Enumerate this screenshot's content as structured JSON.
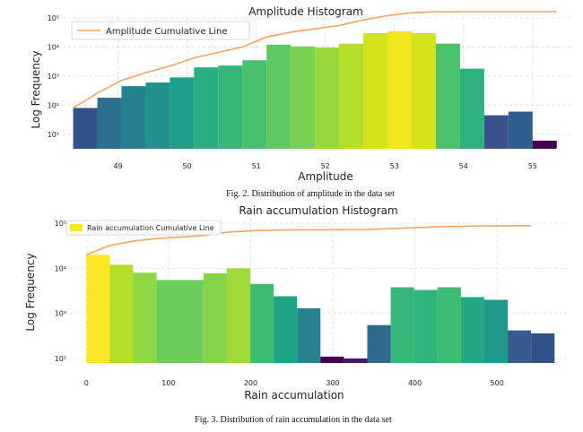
{
  "chart_data": [
    {
      "type": "bar",
      "title": "Amplitude Histogram",
      "xlabel": "Amplitude",
      "ylabel": "Log Frequency",
      "x_ticks": [
        49,
        50,
        51,
        52,
        53,
        54,
        55
      ],
      "y_ticks": [
        "10¹",
        "10²",
        "10³",
        "10⁴",
        "10⁵"
      ],
      "y_scale": "log",
      "grid": true,
      "legend": {
        "placement": "top-left",
        "label": "Amplitude Cumulative Line",
        "color": "#f4a460"
      },
      "bins": [
        {
          "x0": 48.35,
          "x1": 48.7,
          "count": 80,
          "color": "#31538a"
        },
        {
          "x0": 48.7,
          "x1": 49.05,
          "count": 180,
          "color": "#2c6f8e"
        },
        {
          "x0": 49.05,
          "x1": 49.4,
          "count": 450,
          "color": "#26818e"
        },
        {
          "x0": 49.4,
          "x1": 49.75,
          "count": 600,
          "color": "#22918b"
        },
        {
          "x0": 49.75,
          "x1": 50.1,
          "count": 900,
          "color": "#1fa088"
        },
        {
          "x0": 50.1,
          "x1": 50.45,
          "count": 2000,
          "color": "#28ae80"
        },
        {
          "x0": 50.45,
          "x1": 50.8,
          "count": 2300,
          "color": "#35b779"
        },
        {
          "x0": 50.8,
          "x1": 51.15,
          "count": 3500,
          "color": "#48c16e"
        },
        {
          "x0": 51.15,
          "x1": 51.5,
          "count": 12000,
          "color": "#5ec962"
        },
        {
          "x0": 51.5,
          "x1": 51.85,
          "count": 10500,
          "color": "#7ad151"
        },
        {
          "x0": 51.85,
          "x1": 52.2,
          "count": 9500,
          "color": "#98d83e"
        },
        {
          "x0": 52.2,
          "x1": 52.55,
          "count": 13000,
          "color": "#b5de2b"
        },
        {
          "x0": 52.55,
          "x1": 52.9,
          "count": 30000,
          "color": "#d2e21b"
        },
        {
          "x0": 52.9,
          "x1": 53.25,
          "count": 35000,
          "color": "#f1e51d"
        },
        {
          "x0": 53.25,
          "x1": 53.6,
          "count": 30000,
          "color": "#d4e21a"
        },
        {
          "x0": 53.6,
          "x1": 53.95,
          "count": 13000,
          "color": "#4ac16d"
        },
        {
          "x0": 53.95,
          "x1": 54.3,
          "count": 1800,
          "color": "#2db27d"
        },
        {
          "x0": 54.3,
          "x1": 54.65,
          "count": 45,
          "color": "#3b518b"
        },
        {
          "x0": 54.65,
          "x1": 55.0,
          "count": 60,
          "color": "#2c5e8e"
        },
        {
          "x0": 55.0,
          "x1": 55.35,
          "count": 6,
          "color": "#440154"
        }
      ],
      "cumulative": {
        "x": [
          48.35,
          48.7,
          49.05,
          49.4,
          49.75,
          50.1,
          50.45,
          50.8,
          51.15,
          51.5,
          51.85,
          52.2,
          52.55,
          52.9,
          53.25,
          53.6,
          53.95,
          54.3,
          54.65,
          55.0,
          55.35
        ],
        "y": [
          80,
          260,
          710,
          1310,
          2210,
          4210,
          6510,
          10010,
          22010,
          32510,
          42010,
          55010,
          85010,
          120010,
          150010,
          163010,
          164810,
          164855,
          164915,
          164921,
          164921
        ]
      }
    },
    {
      "type": "bar",
      "title": "Rain accumulation Histogram",
      "xlabel": "Rain accumulation",
      "ylabel": "Log Frequency",
      "x_ticks": [
        0,
        100,
        200,
        300,
        400,
        500
      ],
      "y_ticks": [
        "10²",
        "10³",
        "10⁴",
        "10⁵"
      ],
      "y_scale": "log",
      "grid": true,
      "legend": {
        "placement": "top-left",
        "label": "Rain accumulation Cumulative Line",
        "color": "#fde725"
      },
      "bins": [
        {
          "x0": 0,
          "x1": 28.5,
          "count": 20000,
          "color": "#fde725"
        },
        {
          "x0": 28.5,
          "x1": 57,
          "count": 12000,
          "color": "#b5de2b"
        },
        {
          "x0": 57,
          "x1": 85.5,
          "count": 8000,
          "color": "#8fd744"
        },
        {
          "x0": 85.5,
          "x1": 142.5,
          "count": 5500,
          "color": "#6ccd5a"
        },
        {
          "x0": 142.5,
          "x1": 171,
          "count": 7700,
          "color": "#84d44b"
        },
        {
          "x0": 171,
          "x1": 199.5,
          "count": 10000,
          "color": "#a0da39"
        },
        {
          "x0": 199.5,
          "x1": 228,
          "count": 4500,
          "color": "#3fbc73"
        },
        {
          "x0": 228,
          "x1": 256.5,
          "count": 2400,
          "color": "#20a486"
        },
        {
          "x0": 256.5,
          "x1": 285,
          "count": 1300,
          "color": "#26828e"
        },
        {
          "x0": 285,
          "x1": 313.5,
          "count": 110,
          "color": "#440154"
        },
        {
          "x0": 313.5,
          "x1": 342,
          "count": 100,
          "color": "#481668"
        },
        {
          "x0": 342,
          "x1": 370.5,
          "count": 550,
          "color": "#2e6a8e"
        },
        {
          "x0": 370.5,
          "x1": 399,
          "count": 3800,
          "color": "#35b779"
        },
        {
          "x0": 399,
          "x1": 427.5,
          "count": 3300,
          "color": "#2fb47c"
        },
        {
          "x0": 427.5,
          "x1": 456,
          "count": 3800,
          "color": "#3dbc74"
        },
        {
          "x0": 456,
          "x1": 484.5,
          "count": 2300,
          "color": "#22a884"
        },
        {
          "x0": 484.5,
          "x1": 513,
          "count": 2000,
          "color": "#1f9a8a"
        },
        {
          "x0": 513,
          "x1": 541.5,
          "count": 420,
          "color": "#365c8d"
        },
        {
          "x0": 541.5,
          "x1": 570,
          "count": 360,
          "color": "#31528b"
        }
      ],
      "cumulative": {
        "x": [
          0,
          28.5,
          57,
          85.5,
          142.5,
          171,
          199.5,
          228,
          256.5,
          285,
          313.5,
          342,
          370.5,
          399,
          427.5,
          456,
          484.5,
          513,
          541.5
        ],
        "y": [
          20000,
          32000,
          40000,
          45500,
          53200,
          63200,
          67700,
          70100,
          71400,
          71510,
          71610,
          72160,
          75960,
          79260,
          83060,
          85360,
          87360,
          87780,
          88140
        ]
      }
    }
  ],
  "captions": {
    "fig2": "Fig. 2. Distribution of amplitude in the data set",
    "fig3": "Fig. 3. Distribution of rain accumulation in the data set"
  }
}
